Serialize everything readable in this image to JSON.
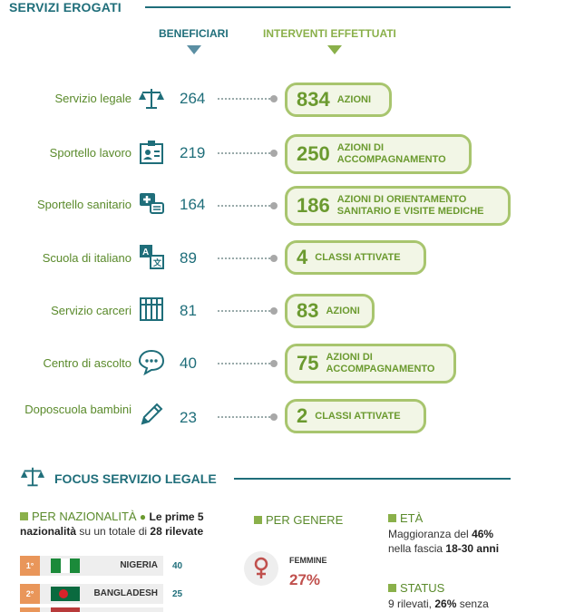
{
  "section1": {
    "title": "SERVIZI EROGATI",
    "col_beneficiari": "BENEFICIARI",
    "col_interventi": "INTERVENTI EFFETTUATI",
    "rows": [
      {
        "label": "Servizio legale",
        "icon": "scales-icon",
        "beneficiari": "264",
        "interventi": "834",
        "desc": "AZIONI"
      },
      {
        "label": "Sportello lavoro",
        "icon": "id-badge-icon",
        "beneficiari": "219",
        "interventi": "250",
        "desc": "AZIONI DI ACCOMPAGNAMENTO"
      },
      {
        "label": "Sportello sanitario",
        "icon": "medical-chat-icon",
        "beneficiari": "164",
        "interventi": "186",
        "desc": "AZIONI DI ORIENTAMENTO SANITARIO E VISITE MEDICHE"
      },
      {
        "label": "Scuola di italiano",
        "icon": "translate-icon",
        "beneficiari": "89",
        "interventi": "4",
        "desc": "CLASSI ATTIVATE"
      },
      {
        "label": "Servizio carceri",
        "icon": "jail-icon",
        "beneficiari": "81",
        "interventi": "83",
        "desc": "AZIONI"
      },
      {
        "label": "Centro di ascolto",
        "icon": "speech-bubble-icon",
        "beneficiari": "40",
        "interventi": "75",
        "desc": "AZIONI DI ACCOMPAGNAMENTO"
      },
      {
        "label": "Doposcuola bambini",
        "icon": "pencil-icon",
        "beneficiari": "23",
        "interventi": "2",
        "desc": "CLASSI ATTIVATE"
      }
    ]
  },
  "section2": {
    "title": "FOCUS SERVIZIO LEGALE",
    "nationality": {
      "header": "PER NAZIONALITÀ",
      "note_a": "Le prime 5",
      "note_b": "nazionalità",
      "note_c": "su un totale di",
      "note_d": "28 rilevate",
      "rows": [
        {
          "rank": "1°",
          "name": "NIGERIA",
          "value": "40"
        },
        {
          "rank": "2°",
          "name": "BANGLADESH",
          "value": "25"
        }
      ]
    },
    "gender": {
      "header": "PER GENERE",
      "label": "FEMMINE",
      "value": "27%"
    },
    "age": {
      "header": "ETÀ",
      "line1_a": "Maggioranza del",
      "line1_b": "46%",
      "line2_a": "nella fascia",
      "line2_b": "18-30 anni"
    },
    "status": {
      "header": "STATUS",
      "line1_a": "9 rilevati,",
      "line1_b": "26%",
      "line1_c": "senza"
    }
  },
  "colors": {
    "teal": "#1f6e7a",
    "green": "#8ab04a",
    "orange": "#e9965a",
    "female": "#c0504d"
  }
}
